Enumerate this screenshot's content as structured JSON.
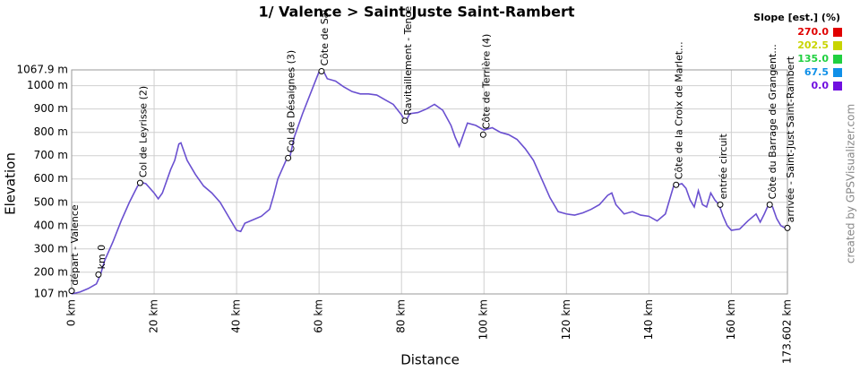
{
  "chart_data": {
    "type": "line",
    "title": "1/ Valence > Saint-Juste Saint-Rambert",
    "x_label": "Distance",
    "y_label": "Elevation",
    "credit": "created by GPSVisualizer.com",
    "grid": true,
    "color": "#6a50d0",
    "xlim": [
      0,
      173.602
    ],
    "ylim": [
      107,
      1067.9
    ],
    "xticks": [
      {
        "value": 0,
        "label": "0 km"
      },
      {
        "value": 20,
        "label": "20 km"
      },
      {
        "value": 40,
        "label": "40 km"
      },
      {
        "value": 60,
        "label": "60 km"
      },
      {
        "value": 80,
        "label": "80 km"
      },
      {
        "value": 100,
        "label": "100 km"
      },
      {
        "value": 120,
        "label": "120 km"
      },
      {
        "value": 140,
        "label": "140 km"
      },
      {
        "value": 160,
        "label": "160 km"
      },
      {
        "value": 173.602,
        "label": "173.602 km"
      }
    ],
    "yticks": [
      {
        "value": 107,
        "label": "107 m"
      },
      {
        "value": 200,
        "label": "200 m"
      },
      {
        "value": 300,
        "label": "300 m"
      },
      {
        "value": 400,
        "label": "400 m"
      },
      {
        "value": 500,
        "label": "500 m"
      },
      {
        "value": 600,
        "label": "600 m"
      },
      {
        "value": 700,
        "label": "700 m"
      },
      {
        "value": 800,
        "label": "800 m"
      },
      {
        "value": 900,
        "label": "900 m"
      },
      {
        "value": 1000,
        "label": "1000 m"
      },
      {
        "value": 1067.9,
        "label": "1067.9 m"
      }
    ],
    "x": [
      0,
      2,
      4,
      6,
      7,
      8,
      10,
      12,
      14,
      16,
      17,
      18,
      20,
      21,
      22,
      24,
      25,
      26,
      26.5,
      27,
      28,
      30,
      32,
      34,
      36,
      38,
      40,
      41,
      42,
      44,
      46,
      48,
      49,
      50,
      52,
      53,
      54,
      56,
      58,
      60,
      61,
      62,
      64,
      66,
      68,
      70,
      72,
      74,
      76,
      78,
      80,
      81,
      82,
      84,
      86,
      88,
      90,
      92,
      93,
      94,
      95,
      96,
      98,
      100,
      102,
      104,
      106,
      108,
      110,
      112,
      114,
      116,
      118,
      120,
      122,
      124,
      126,
      128,
      130,
      131,
      132,
      134,
      136,
      138,
      140,
      142,
      144,
      145,
      146,
      148,
      149,
      150,
      151,
      152,
      153,
      154,
      155,
      156,
      157,
      158,
      159,
      160,
      162,
      164,
      166,
      167,
      168,
      169,
      170,
      171,
      172,
      173,
      173.602
    ],
    "values": [
      107,
      115,
      130,
      150,
      190,
      250,
      330,
      420,
      500,
      570,
      585,
      580,
      540,
      515,
      540,
      640,
      680,
      750,
      755,
      730,
      680,
      620,
      570,
      540,
      500,
      440,
      380,
      375,
      410,
      425,
      440,
      470,
      530,
      600,
      680,
      700,
      780,
      880,
      970,
      1060,
      1065,
      1030,
      1020,
      995,
      975,
      965,
      965,
      960,
      940,
      920,
      875,
      845,
      880,
      885,
      900,
      920,
      895,
      830,
      780,
      740,
      790,
      840,
      830,
      810,
      820,
      800,
      790,
      770,
      730,
      680,
      600,
      520,
      460,
      450,
      445,
      455,
      470,
      490,
      530,
      540,
      490,
      450,
      460,
      445,
      440,
      420,
      450,
      510,
      570,
      580,
      560,
      510,
      480,
      550,
      490,
      480,
      540,
      510,
      490,
      440,
      400,
      380,
      385,
      420,
      450,
      415,
      450,
      490,
      480,
      430,
      400,
      390,
      390
    ],
    "waypoints": [
      {
        "label": "départ - Valence",
        "km": 0,
        "elevation": 120
      },
      {
        "label": "km 0",
        "km": 6.5,
        "elevation": 190
      },
      {
        "label": "Col de Leyrisse (2)",
        "km": 16.6,
        "elevation": 583
      },
      {
        "label": "Col de Désaignes (3)",
        "km": 52.5,
        "elevation": 690
      },
      {
        "label": "Côte de Sai",
        "km": 60.6,
        "elevation": 1062
      },
      {
        "label": "Ravitaillement - Tence",
        "km": 80.8,
        "elevation": 850
      },
      {
        "label": "Côte de Terrière (4)",
        "km": 99.8,
        "elevation": 790
      },
      {
        "label": "Côte de la Croix de Marlet...",
        "km": 146.6,
        "elevation": 575
      },
      {
        "label": "entrée circuit",
        "km": 157.3,
        "elevation": 490
      },
      {
        "label": "Côte du Barrage de Grangent...",
        "km": 169.3,
        "elevation": 490
      },
      {
        "label": "arrivée - Saint-Just Saint-Rambert",
        "km": 173.602,
        "elevation": 390
      }
    ],
    "slope_legend": {
      "title": "Slope [est.] (%)",
      "items": [
        {
          "value": 270,
          "label": "270.0",
          "color": "#e00000"
        },
        {
          "value": 202.5,
          "label": "202.5",
          "color": "#c8d400"
        },
        {
          "value": 135,
          "label": "135.0",
          "color": "#20d040"
        },
        {
          "value": 67.5,
          "label": "67.5",
          "color": "#1090e8"
        },
        {
          "value": 0,
          "label": "0.0",
          "color": "#7010e0"
        }
      ]
    }
  }
}
